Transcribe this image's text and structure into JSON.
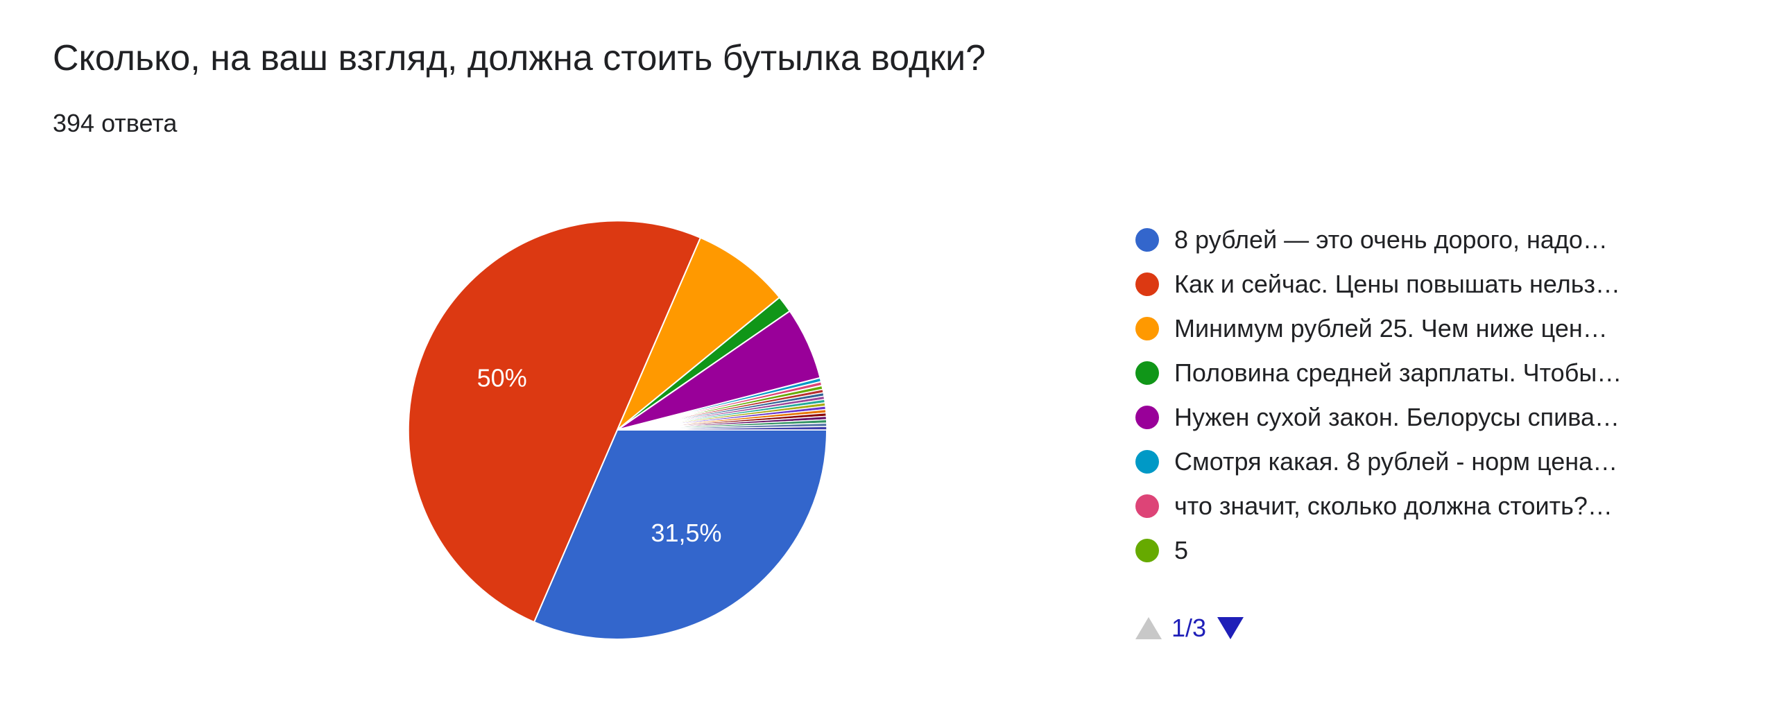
{
  "question": {
    "title": "Сколько, на ваш взгляд, должна стоить бутылка водки?",
    "responses": "394 ответа"
  },
  "chart_data": {
    "type": "pie",
    "categories": [
      "8 рублей — это очень дорого, надо…",
      "Как и сейчас. Цены повышать нельз…",
      "Минимум рублей 25. Чем ниже цен…",
      "Половина средней зарплаты. Чтобы…",
      "Нужен сухой закон. Белорусы спива…",
      "Смотря какая. 8 рублей - норм цена…",
      "что значит, сколько должна стоить?…",
      "5"
    ],
    "values": [
      31.5,
      50,
      7.6,
      1.3,
      5.6,
      0.3,
      0.3,
      0.3
    ],
    "colors": [
      "#3366cc",
      "#dc3912",
      "#ff9900",
      "#109618",
      "#990099",
      "#0099c6",
      "#dd4477",
      "#66aa00"
    ],
    "data_labels": [
      "31,5%",
      "50%",
      "",
      "",
      "",
      "",
      "",
      ""
    ],
    "minor_slice_colors": [
      "#b82e2e",
      "#316395",
      "#994499",
      "#22aa99",
      "#aaaa11",
      "#6633cc",
      "#e67300",
      "#8b0707",
      "#651067",
      "#329262",
      "#5574a6",
      "#3b3eac"
    ],
    "legend_position": "right"
  },
  "legend_pager": {
    "page": "1/3",
    "prev_icon": "triangle-up-icon",
    "next_icon": "triangle-down-icon"
  }
}
